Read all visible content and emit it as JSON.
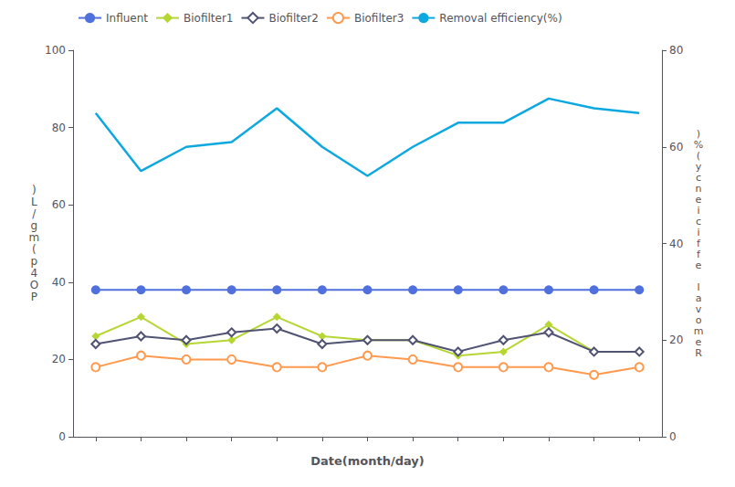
{
  "chart_data": {
    "type": "line",
    "x": [
      1,
      2,
      3,
      4,
      5,
      6,
      7,
      8,
      9,
      10,
      11,
      12,
      13
    ],
    "xlim": [
      0.5,
      13.5
    ],
    "xticks": [
      1,
      2,
      3,
      4,
      5,
      6,
      7,
      8,
      9,
      10,
      11,
      12,
      13
    ],
    "x_label": "Date(month/day)",
    "y_label": ")\nL\n/\ng\nm\n(\np\n4\nO\nP",
    "y2_label": ")\n%\n(\ny\nc\nn\ne\ni\nc\ni\nf\nf\ne\n \nl\na\nv\no\nm\ne\nR",
    "ylim": [
      0,
      100
    ],
    "yticks": [
      0,
      20,
      40,
      60,
      80,
      100
    ],
    "y2lim": [
      0,
      80
    ],
    "y2ticks": [
      0,
      20,
      40,
      60,
      80
    ],
    "tick_labels": "y",
    "grid": false,
    "legend": "upper left",
    "series": [
      {
        "name": "Influent",
        "marker": "circle",
        "values": [
          38,
          38,
          38,
          38,
          38,
          38,
          38,
          38,
          38,
          38,
          38,
          38,
          38
        ]
      },
      {
        "name": "Biofilter1",
        "marker": "diamond",
        "values": [
          26,
          31,
          24,
          25,
          31,
          26,
          25,
          25,
          21,
          22,
          29,
          22,
          22
        ]
      },
      {
        "name": "Biofilter2",
        "marker": "open diamond",
        "values": [
          24,
          26,
          25,
          27,
          28,
          24,
          25,
          25,
          22,
          25,
          27,
          22,
          22
        ]
      },
      {
        "name": "Biofilter3",
        "marker": "open circle",
        "values": [
          18,
          21,
          20,
          20,
          18,
          18,
          21,
          20,
          18,
          18,
          18,
          16,
          18
        ]
      },
      {
        "name": "Removal efficiency(%)",
        "marker": "none",
        "axis": "y2",
        "values": [
          67,
          55,
          60,
          61,
          68,
          60,
          54,
          60,
          65,
          65,
          70,
          68,
          67
        ]
      }
    ]
  }
}
